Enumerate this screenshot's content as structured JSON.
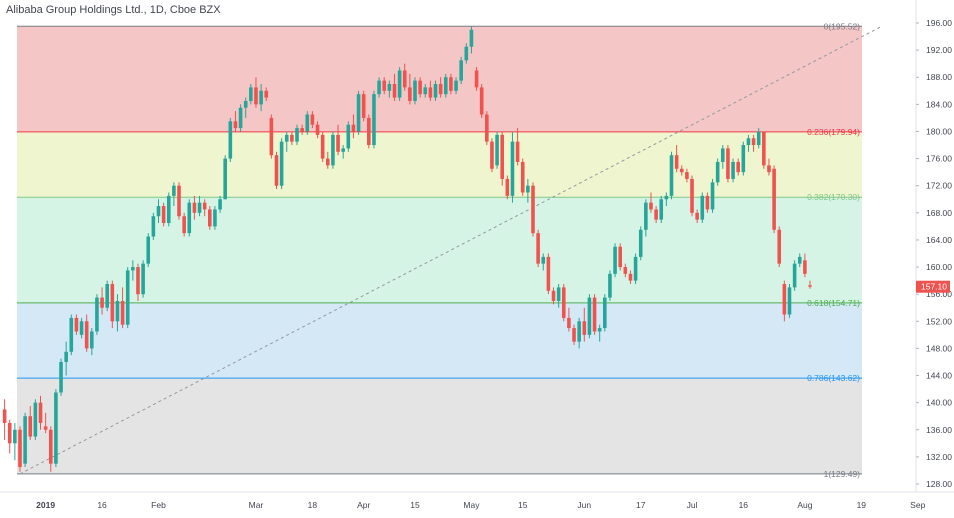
{
  "chart_data": {
    "type": "candlestick",
    "title": "Alibaba Group Holdings Ltd., 1D, Cboe BZX",
    "xlabel": "",
    "ylabel": "",
    "ylim": [
      126.5,
      197.5
    ],
    "grid": false,
    "y_ticks": [
      128,
      132,
      136,
      140,
      144,
      148,
      152,
      156,
      160,
      164,
      168,
      172,
      176,
      180,
      184,
      188,
      192,
      196
    ],
    "x_ticks": [
      {
        "label": "2019",
        "index": 8
      },
      {
        "label": "16",
        "index": 19
      },
      {
        "label": "Feb",
        "index": 30
      },
      {
        "label": "Mar",
        "index": 49
      },
      {
        "label": "18",
        "index": 60
      },
      {
        "label": "Apr",
        "index": 70
      },
      {
        "label": "15",
        "index": 80
      },
      {
        "label": "May",
        "index": 91
      },
      {
        "label": "15",
        "index": 101
      },
      {
        "label": "Jun",
        "index": 113
      },
      {
        "label": "17",
        "index": 124
      },
      {
        "label": "Jul",
        "index": 134
      },
      {
        "label": "16",
        "index": 144
      },
      {
        "label": "Aug",
        "index": 156
      },
      {
        "label": "19",
        "index": 167
      },
      {
        "label": "Sep",
        "index": 178
      }
    ],
    "last_price": 157.1,
    "last_price_label": "157.10",
    "fib": {
      "start_index": 3,
      "end_index": 171,
      "levels": [
        {
          "ratio": "0",
          "value": 195.52,
          "label": "0(195.52)",
          "line_color": "#787b86",
          "band_color": "#f5c6c6"
        },
        {
          "ratio": "0.236",
          "value": 179.94,
          "label": "0.236(179.94)",
          "line_color": "#f23645",
          "band_color": "#eef5cf"
        },
        {
          "ratio": "0.382",
          "value": 170.3,
          "label": "0.382(170.30)",
          "line_color": "#81c784",
          "band_color": "#d6f4e5"
        },
        {
          "ratio": "0.618",
          "value": 154.71,
          "label": "0.618(154.71)",
          "line_color": "#4caf50",
          "band_color": "#d4e8f5"
        },
        {
          "ratio": "0.786",
          "value": 143.62,
          "label": "0.786(143.62)",
          "line_color": "#2196f3",
          "band_color": "#e4e4e4"
        },
        {
          "ratio": "1",
          "value": 129.49,
          "label": "1(129.49)",
          "line_color": "#787b86",
          "band_color": null
        }
      ]
    },
    "colors": {
      "up": "#26a69a",
      "down": "#ef5350",
      "axis_text": "#434651",
      "price_tag": "#ef5350"
    },
    "candles": [
      [
        139,
        140.5,
        134.5,
        137
      ],
      [
        137,
        137.5,
        132.5,
        134
      ],
      [
        134,
        137,
        131.5,
        136
      ],
      [
        136,
        136.5,
        129.8,
        130.5
      ],
      [
        131,
        138.5,
        130.5,
        138
      ],
      [
        138,
        139.5,
        134.5,
        135
      ],
      [
        135,
        140.5,
        134.5,
        140
      ],
      [
        140,
        141,
        136,
        137
      ],
      [
        136.5,
        138.5,
        135.5,
        136
      ],
      [
        136,
        136.5,
        129.8,
        131
      ],
      [
        131,
        142,
        130.5,
        141.5
      ],
      [
        141.5,
        146.5,
        141,
        146
      ],
      [
        146,
        149,
        144,
        147.5
      ],
      [
        147.5,
        153,
        147,
        152.5
      ],
      [
        152.5,
        153,
        150,
        150.5
      ],
      [
        150,
        152.5,
        149.5,
        152
      ],
      [
        152,
        153,
        147.5,
        148
      ],
      [
        148,
        151,
        147,
        150.5
      ],
      [
        150.5,
        156,
        150,
        155.5
      ],
      [
        155.5,
        157,
        153,
        154
      ],
      [
        154,
        158,
        153.5,
        157.5
      ],
      [
        157.5,
        158,
        151,
        152
      ],
      [
        152,
        156,
        150.5,
        155
      ],
      [
        155,
        157,
        151,
        151.5
      ],
      [
        151.5,
        160,
        151,
        159.5
      ],
      [
        159.5,
        161,
        158,
        160
      ],
      [
        160,
        160.5,
        155,
        156
      ],
      [
        156,
        161,
        155.5,
        160.5
      ],
      [
        160.5,
        165,
        160,
        164.5
      ],
      [
        164.5,
        168,
        164,
        167.5
      ],
      [
        167.5,
        170,
        166.5,
        169
      ],
      [
        169,
        169.5,
        166,
        166.5
      ],
      [
        166.5,
        171,
        166,
        170.5
      ],
      [
        170.5,
        172.5,
        169,
        172
      ],
      [
        172,
        172.5,
        167,
        167.5
      ],
      [
        167.5,
        168,
        164.5,
        165
      ],
      [
        165,
        170,
        164.5,
        169.5
      ],
      [
        169.5,
        170.5,
        167,
        168
      ],
      [
        168,
        170.5,
        167.5,
        169.5
      ],
      [
        169.5,
        170,
        167.5,
        168.5
      ],
      [
        168.5,
        169,
        165.5,
        166
      ],
      [
        166,
        169,
        165.5,
        168.5
      ],
      [
        168.5,
        170.5,
        168,
        170
      ],
      [
        170,
        176.5,
        170,
        176
      ],
      [
        176,
        182,
        175.5,
        181.5
      ],
      [
        181.5,
        183,
        180,
        180.5
      ],
      [
        180.5,
        184,
        180,
        183.5
      ],
      [
        183.5,
        185,
        182,
        184.5
      ],
      [
        184.5,
        187,
        184,
        186.5
      ],
      [
        186.5,
        188,
        183.5,
        184
      ],
      [
        184,
        187,
        183,
        186
      ],
      [
        186,
        186.5,
        184.5,
        185
      ],
      [
        182,
        182.5,
        176,
        176.5
      ],
      [
        176.5,
        177,
        171.5,
        172
      ],
      [
        172,
        179,
        171.5,
        178.5
      ],
      [
        178.5,
        180,
        177,
        179.5
      ],
      [
        179.5,
        180,
        178,
        178.5
      ],
      [
        178.5,
        181,
        178,
        180.5
      ],
      [
        180.5,
        181,
        179.5,
        180
      ],
      [
        180,
        183,
        179.5,
        182.5
      ],
      [
        182.5,
        183,
        180.5,
        181
      ],
      [
        181,
        181.5,
        179,
        179.5
      ],
      [
        179.5,
        180,
        175.5,
        176
      ],
      [
        176,
        177,
        174.5,
        175
      ],
      [
        175,
        180,
        174.5,
        179.5
      ],
      [
        179.5,
        181,
        176.5,
        177
      ],
      [
        177,
        178,
        176,
        177.5
      ],
      [
        177.5,
        181.5,
        177,
        181
      ],
      [
        181,
        182.5,
        179,
        180
      ],
      [
        180,
        186,
        179.5,
        185.5
      ],
      [
        185.5,
        186,
        181.5,
        182
      ],
      [
        182,
        182.5,
        177.5,
        178
      ],
      [
        178,
        186,
        177.5,
        185.5
      ],
      [
        185.5,
        188,
        185,
        187.5
      ],
      [
        187.5,
        188,
        185.5,
        186
      ],
      [
        186,
        187.5,
        185,
        187
      ],
      [
        187,
        188.5,
        184.5,
        185
      ],
      [
        185,
        189.5,
        184.5,
        189
      ],
      [
        189,
        190,
        186,
        186.5
      ],
      [
        186.5,
        188.5,
        184,
        184.5
      ],
      [
        184.5,
        188,
        184,
        187.5
      ],
      [
        187.5,
        188,
        185,
        185.5
      ],
      [
        185.5,
        187,
        185,
        186.5
      ],
      [
        186.5,
        187.5,
        184.5,
        185
      ],
      [
        185,
        187.5,
        184.5,
        187
      ],
      [
        187,
        188,
        185,
        185.5
      ],
      [
        185.5,
        188.5,
        185,
        188
      ],
      [
        188,
        188.5,
        185.5,
        186
      ],
      [
        186,
        188,
        185.5,
        187.5
      ],
      [
        187.5,
        191,
        187,
        190.5
      ],
      [
        190.5,
        193,
        190,
        192.5
      ],
      [
        192.5,
        195.5,
        191.5,
        195
      ],
      [
        189,
        189.5,
        186,
        186.5
      ],
      [
        186.5,
        187,
        182,
        182.5
      ],
      [
        182.5,
        183,
        178,
        178.5
      ],
      [
        178.5,
        179,
        174,
        174.5
      ],
      [
        175,
        180,
        174.5,
        179.5
      ],
      [
        179.5,
        180,
        172,
        173
      ],
      [
        173,
        173.5,
        170,
        170.5
      ],
      [
        170.5,
        180,
        169.5,
        178.5
      ],
      [
        178.5,
        180.5,
        175,
        175.5
      ],
      [
        175.5,
        176,
        170.5,
        171
      ],
      [
        171,
        173,
        169.5,
        172
      ],
      [
        172,
        172.5,
        164.5,
        165
      ],
      [
        165,
        165.5,
        160,
        160.5
      ],
      [
        160.5,
        162,
        159.5,
        161.5
      ],
      [
        161.5,
        162,
        156,
        156.5
      ],
      [
        156.5,
        157,
        154.5,
        155
      ],
      [
        155,
        157.5,
        154,
        157
      ],
      [
        157,
        157.5,
        152,
        152.5
      ],
      [
        152.5,
        154,
        150.5,
        151
      ],
      [
        151,
        151.5,
        148.5,
        149
      ],
      [
        149,
        152.5,
        148,
        152
      ],
      [
        152,
        154,
        149,
        150
      ],
      [
        150,
        156,
        149.5,
        155.5
      ],
      [
        155.5,
        156,
        150,
        150.5
      ],
      [
        150.5,
        151.5,
        149,
        151
      ],
      [
        151,
        156,
        150.5,
        155.5
      ],
      [
        155.5,
        159.5,
        155,
        159
      ],
      [
        159,
        163.5,
        158.5,
        163
      ],
      [
        163,
        163.5,
        159.5,
        160
      ],
      [
        160,
        160.5,
        158.5,
        159
      ],
      [
        159,
        159.5,
        157.5,
        158
      ],
      [
        158,
        162,
        157.5,
        161.5
      ],
      [
        161.5,
        166,
        161,
        165.5
      ],
      [
        165.5,
        170,
        164.5,
        169.5
      ],
      [
        169.5,
        171,
        168,
        168.5
      ],
      [
        168.5,
        169,
        166.5,
        167
      ],
      [
        167,
        170.5,
        166.5,
        170
      ],
      [
        170,
        171,
        169,
        170.5
      ],
      [
        170.5,
        177,
        170,
        176.5
      ],
      [
        176.5,
        178,
        174,
        174.5
      ],
      [
        174.5,
        175,
        173.5,
        174
      ],
      [
        174,
        174.5,
        172.5,
        173
      ],
      [
        173,
        173.5,
        167.5,
        168
      ],
      [
        168,
        168.5,
        166.5,
        167
      ],
      [
        167,
        171,
        166.5,
        170.5
      ],
      [
        170.5,
        171,
        168,
        168.5
      ],
      [
        168.5,
        173,
        168,
        172.5
      ],
      [
        172.5,
        176,
        172,
        175.5
      ],
      [
        175.5,
        178,
        174.5,
        177.5
      ],
      [
        177.5,
        178,
        172.5,
        173
      ],
      [
        173,
        176,
        172.5,
        175.5
      ],
      [
        175.5,
        176,
        173.5,
        174
      ],
      [
        174,
        178.5,
        173.5,
        178
      ],
      [
        178,
        179.5,
        177,
        179
      ],
      [
        179,
        179.5,
        177,
        178
      ],
      [
        178,
        180.5,
        177.5,
        180
      ],
      [
        180,
        180,
        174.5,
        175
      ],
      [
        175,
        176,
        173.5,
        174
      ],
      [
        174.5,
        175,
        165,
        165.5
      ],
      [
        165.5,
        166,
        160,
        160.5
      ],
      [
        157.5,
        158,
        152,
        153
      ],
      [
        153,
        157.5,
        152.5,
        157
      ],
      [
        157,
        161,
        156.5,
        160.5
      ],
      [
        160.5,
        162,
        160,
        161.5
      ],
      [
        161,
        162,
        158.5,
        159
      ],
      [
        157.3,
        158,
        156.8,
        157.1
      ]
    ]
  }
}
